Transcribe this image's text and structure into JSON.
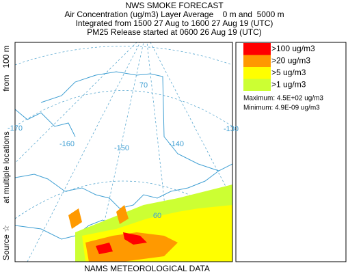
{
  "header": {
    "title": "NWS SMOKE FORECAST",
    "lines": [
      "Air Concentration (ug/m3) Layer Average    0 m and  5000 m",
      "Integrated from 1500 27 Aug to 1600 27 Aug 19 (UTC)",
      "PM25 Release started at 0600 26 Aug 19 (UTC)"
    ]
  },
  "source_label": [
    "Source ☆",
    "at multiple locations",
    "from   100 m"
  ],
  "map": {
    "grid_labels": [
      "-170",
      "-160",
      "-150",
      "-140",
      "-130",
      "70",
      "60"
    ]
  },
  "legend": {
    "entries": [
      {
        "label": ">100 ug/m3",
        "color": "#ff0000"
      },
      {
        "label": ">20 ug/m3",
        "color": "#ff9900"
      },
      {
        "label": ">5 ug/m3",
        "color": "#ffff00"
      },
      {
        "label": ">1 ug/m3",
        "color": "#ccff33"
      }
    ],
    "maximum": "Maximum: 4.5E+02 ug/m3",
    "minimum": "Minimum: 4.9E-09 ug/m3"
  },
  "footer": "NAMS METEOROLOGICAL DATA"
}
